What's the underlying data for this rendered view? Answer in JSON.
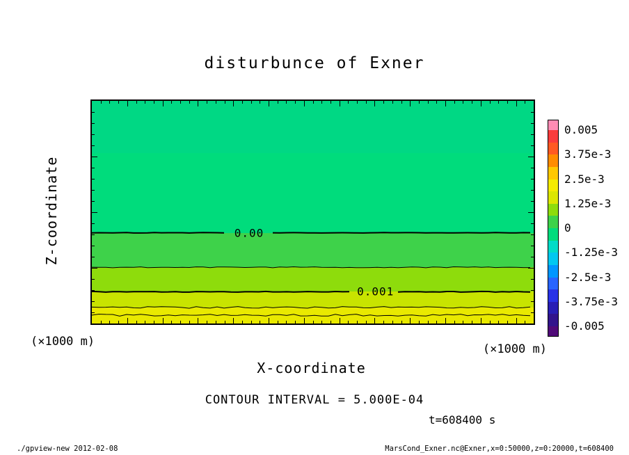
{
  "title": "disturbunce of Exner",
  "axes": {
    "x_label": "X-coordinate",
    "y_label": "Z-coordinate",
    "x_unit_left": "(×1000 m)",
    "x_unit_right": "(×1000 m)",
    "x_ticks": [
      4,
      8,
      12,
      16,
      20,
      24,
      28,
      32,
      36,
      40,
      44,
      48
    ],
    "y_ticks": [
      5,
      10,
      15
    ],
    "x_range": [
      0,
      50
    ],
    "y_range": [
      0,
      20
    ]
  },
  "annotations": {
    "contour_interval": "CONTOUR INTERVAL = 5.000E-04",
    "time": "t=608400 s"
  },
  "colorbar": {
    "labels": [
      "0.005",
      "3.75e-3",
      "2.5e-3",
      "1.25e-3",
      "0",
      "-1.25e-3",
      "-2.5e-3",
      "-3.75e-3",
      "-0.005"
    ],
    "over_color": "#ff8cb4",
    "under_color": "#500a78",
    "colors": [
      "#fa3c3c",
      "#ff5a23",
      "#ff8c00",
      "#ffc800",
      "#f5eb00",
      "#dce600",
      "#8edc0c",
      "#3ed24a",
      "#00dc7c",
      "#00dcc8",
      "#00c8f0",
      "#0096ff",
      "#2864ff",
      "#2832e6",
      "#281eb4",
      "#32148c"
    ]
  },
  "footer": {
    "left": "./gpview-new  2012-02-08",
    "right": "MarsCond_Exner.nc@Exner,x=0:50000,z=0:20000,t=608400"
  },
  "chart_data": {
    "type": "heatmap",
    "title": "disturbunce of Exner",
    "xlabel": "X-coordinate (×1000 m)",
    "ylabel": "Z-coordinate (×1000 m)",
    "x_range": [
      0,
      50
    ],
    "z_range": [
      0,
      20
    ],
    "contour_interval": 0.0005,
    "time_s": 608400,
    "tone_bands": [
      {
        "z_top": 20,
        "z_bottom": 15.3,
        "color": "#00d884",
        "value_range": "-0.00125 to 0"
      },
      {
        "z_top": 15.3,
        "z_bottom": 8.15,
        "color": "#00dc7c",
        "value_range": "-0.000625 to 0"
      },
      {
        "z_top": 8.15,
        "z_bottom": 5.05,
        "color": "#3ed24a",
        "value_range": "0 to 0.0005"
      },
      {
        "z_top": 5.05,
        "z_bottom": 2.85,
        "color": "#8edc0c",
        "value_range": "0.0005 to 0.001"
      },
      {
        "z_top": 2.85,
        "z_bottom": 1.45,
        "color": "#c8e400",
        "value_range": "0.001 to 0.0015"
      },
      {
        "z_top": 1.45,
        "z_bottom": 0,
        "color": "#e9e900",
        "value_range": "0.0015 to 0.002"
      }
    ],
    "contours": [
      {
        "z": 8.15,
        "value": 0.0,
        "label": "0.00",
        "label_x": 17.8,
        "thick": true,
        "amp": 0.3
      },
      {
        "z": 5.05,
        "value": 0.0005,
        "thick": false,
        "amp": 0.7
      },
      {
        "z": 2.85,
        "value": 0.001,
        "label": "0.001",
        "label_x": 32.1,
        "thick": true,
        "amp": 0.5
      },
      {
        "z": 1.45,
        "value": 0.0015,
        "thick": false,
        "amp": 1.3
      },
      {
        "z": 0.75,
        "value": 0.002,
        "thick": false,
        "amp": 1.5
      }
    ]
  }
}
